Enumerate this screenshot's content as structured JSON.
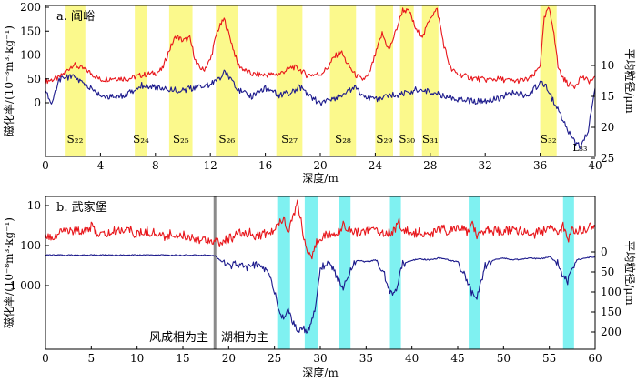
{
  "chart_data": [
    {
      "type": "line",
      "panel_label": "a. 阎峪",
      "xlabel": "深度/m",
      "ylabel_left": "磁化率/(10⁻⁸m³·kg⁻¹)",
      "ylabel_right": "平均粒径/μm",
      "xlim": [
        0,
        40
      ],
      "x_ticks": [
        "0",
        "4",
        "8",
        "12",
        "16",
        "20",
        "24",
        "28",
        "32",
        "36",
        "40"
      ],
      "ylim_left": [
        -70,
        200
      ],
      "y_ticks_left": [
        "0",
        "50",
        "100",
        "150",
        "200"
      ],
      "ylim_right_inverted": [
        5,
        25
      ],
      "y_ticks_right": [
        "10",
        "15",
        "20",
        "25"
      ],
      "highlight_color": "#fbf98c",
      "highlight_bands": [
        {
          "label": "S₂₂",
          "x0": 1.4,
          "x1": 2.9
        },
        {
          "label": "S₂₄",
          "x0": 6.5,
          "x1": 7.4
        },
        {
          "label": "S₂₅",
          "x0": 9.0,
          "x1": 10.7
        },
        {
          "label": "S₂₆",
          "x0": 12.4,
          "x1": 14.0
        },
        {
          "label": "S₂₇",
          "x0": 16.8,
          "x1": 18.7
        },
        {
          "label": "S₂₈",
          "x0": 20.7,
          "x1": 22.6
        },
        {
          "label": "S₂₉",
          "x0": 24.0,
          "x1": 25.3
        },
        {
          "label": "S₃₀",
          "x0": 25.8,
          "x1": 26.8
        },
        {
          "label": "S₃₁",
          "x0": 27.4,
          "x1": 28.6
        },
        {
          "label": "S₃₂",
          "x0": 36.0,
          "x1": 37.2
        }
      ],
      "extra_label": "L₃₃",
      "series": [
        {
          "color": "#e8161b",
          "axis": "left",
          "x": [
            0,
            1,
            2,
            3,
            4,
            5,
            6,
            7,
            7.5,
            8,
            8.5,
            9,
            9.5,
            10,
            10.5,
            11,
            11.5,
            12,
            12.5,
            13,
            13.5,
            14,
            14.5,
            15,
            16,
            17,
            17.5,
            18,
            18.5,
            19,
            20,
            20.5,
            21,
            21.5,
            22,
            22.5,
            23,
            23.5,
            24,
            24.5,
            25,
            25.5,
            26,
            26.5,
            27,
            27.5,
            28,
            28.5,
            29,
            29.5,
            30,
            31,
            32,
            33,
            34,
            35,
            35.5,
            36,
            36.3,
            36.6,
            37,
            37.3,
            37.6,
            38,
            38.5,
            39,
            39.5,
            40
          ],
          "y": [
            45,
            52,
            80,
            68,
            48,
            52,
            50,
            58,
            60,
            62,
            70,
            110,
            140,
            130,
            135,
            80,
            68,
            90,
            150,
            175,
            130,
            80,
            68,
            60,
            58,
            60,
            68,
            75,
            70,
            58,
            60,
            72,
            95,
            108,
            80,
            60,
            48,
            55,
            100,
            145,
            110,
            150,
            195,
            190,
            150,
            140,
            180,
            195,
            120,
            70,
            60,
            52,
            48,
            50,
            45,
            48,
            55,
            80,
            175,
            200,
            150,
            75,
            55,
            40,
            35,
            55,
            45,
            50
          ]
        },
        {
          "color": "#1c1a8c",
          "axis": "right",
          "x": [
            0,
            0.5,
            1,
            2,
            3,
            4,
            5,
            6,
            7,
            8,
            9,
            10,
            11,
            12,
            12.5,
            13,
            13.5,
            14,
            14.5,
            15,
            16,
            17,
            18,
            18.5,
            19,
            20,
            21,
            22,
            22.5,
            23,
            24,
            25,
            26,
            27,
            28,
            29,
            30,
            31,
            32,
            33,
            34,
            35,
            36,
            36.5,
            37,
            37.5,
            38,
            38.5,
            39,
            39.5,
            40
          ],
          "y": [
            14.5,
            16,
            12.2,
            11.8,
            13.3,
            14.8,
            15.2,
            14.6,
            13.2,
            13.5,
            13.8,
            14,
            13.6,
            13,
            12.4,
            11.2,
            12,
            13.8,
            14.5,
            15,
            13.6,
            14.8,
            14.3,
            13.4,
            14.5,
            16.2,
            15.3,
            14.4,
            13.2,
            14.8,
            15.6,
            14.9,
            14.6,
            13.9,
            14.3,
            14.9,
            15.4,
            15.7,
            15.9,
            15.3,
            14.3,
            14.9,
            12.8,
            13.6,
            16,
            18,
            20.5,
            22.5,
            23.2,
            20.5,
            13.5
          ]
        }
      ]
    },
    {
      "type": "line",
      "panel_label": "b. 武家堡",
      "xlabel": "深度/m",
      "ylabel_left": "磁化率/(10⁻⁸m³·kg⁻¹)",
      "ylabel_right": "平均粒径/μm",
      "y_scale_left": "log (reversed)",
      "xlim": [
        0,
        60
      ],
      "x_ticks": [
        "0",
        "5",
        "10",
        "15",
        "20",
        "25",
        "30",
        "35",
        "40",
        "45",
        "50",
        "55",
        "60"
      ],
      "y_ticks_left": [
        "10",
        "100",
        "1 000"
      ],
      "ylim_right_inverted": [
        -50,
        200
      ],
      "y_ticks_right": [
        "0",
        "50",
        "100",
        "150",
        "200"
      ],
      "highlight_color": "#7ff1f1",
      "highlight_bands": [
        {
          "x0": 25.3,
          "x1": 26.7
        },
        {
          "x0": 28.3,
          "x1": 29.7
        },
        {
          "x0": 32.0,
          "x1": 33.3
        },
        {
          "x0": 37.6,
          "x1": 38.8
        },
        {
          "x0": 46.2,
          "x1": 47.4
        },
        {
          "x0": 56.5,
          "x1": 57.7
        }
      ],
      "divider_depth": 18.5,
      "divider_color": "#8a8a8a",
      "region_labels": [
        "风成相为主",
        "湖相为主"
      ],
      "series": [
        {
          "color": "#e8161b",
          "axis": "left",
          "x": [
            0,
            1,
            2,
            3,
            4,
            5,
            6,
            7,
            8,
            9,
            10,
            11,
            12,
            13,
            14,
            15,
            16,
            17,
            18,
            19,
            20,
            21,
            22,
            23,
            24,
            25,
            25.5,
            26,
            26.5,
            27,
            27.5,
            28,
            28.5,
            29,
            29.5,
            30,
            31,
            32,
            32.5,
            33,
            34,
            35,
            36,
            37,
            38,
            38.5,
            39,
            40,
            41,
            42,
            43,
            44,
            45,
            46,
            46.5,
            47,
            48,
            49,
            50,
            51,
            52,
            53,
            54,
            55,
            56,
            56.5,
            57,
            57.5,
            58,
            59,
            60
          ],
          "y": [
            55,
            60,
            38,
            45,
            42,
            35,
            55,
            50,
            42,
            38,
            55,
            45,
            50,
            60,
            52,
            58,
            62,
            72,
            70,
            90,
            70,
            55,
            48,
            58,
            52,
            45,
            25,
            20,
            40,
            18,
            8,
            28,
            120,
            250,
            90,
            60,
            55,
            50,
            25,
            40,
            48,
            42,
            38,
            50,
            45,
            25,
            40,
            52,
            48,
            55,
            38,
            45,
            40,
            45,
            25,
            55,
            40,
            45,
            48,
            40,
            45,
            55,
            48,
            38,
            50,
            30,
            80,
            35,
            45,
            38,
            30
          ]
        },
        {
          "color": "#1c1a8c",
          "axis": "right",
          "x": [
            0,
            2,
            4,
            6,
            8,
            10,
            12,
            14,
            16,
            18,
            18.5,
            19,
            20,
            21,
            22,
            23,
            24,
            24.5,
            25,
            25.5,
            26,
            26.5,
            27,
            27.5,
            28,
            28.5,
            29,
            29.5,
            30,
            31,
            32,
            32.5,
            33,
            33.5,
            34,
            35,
            36,
            37,
            37.5,
            38,
            38.5,
            39,
            40,
            41,
            42,
            43,
            44,
            45,
            46,
            46.5,
            47,
            47.5,
            48,
            49,
            50,
            51,
            52,
            53,
            54,
            55,
            56,
            56.5,
            57,
            57.5,
            58,
            59,
            60
          ],
          "y": [
            8,
            8,
            8,
            8,
            8,
            8,
            8,
            8,
            8,
            8,
            10,
            20,
            35,
            30,
            38,
            32,
            45,
            60,
            100,
            150,
            165,
            140,
            175,
            200,
            190,
            195,
            185,
            130,
            40,
            25,
            70,
            90,
            60,
            35,
            20,
            25,
            20,
            55,
            95,
            110,
            75,
            30,
            20,
            18,
            20,
            15,
            20,
            25,
            70,
            100,
            120,
            80,
            35,
            20,
            15,
            20,
            18,
            15,
            18,
            12,
            30,
            60,
            75,
            40,
            20,
            15,
            12
          ]
        }
      ]
    }
  ]
}
